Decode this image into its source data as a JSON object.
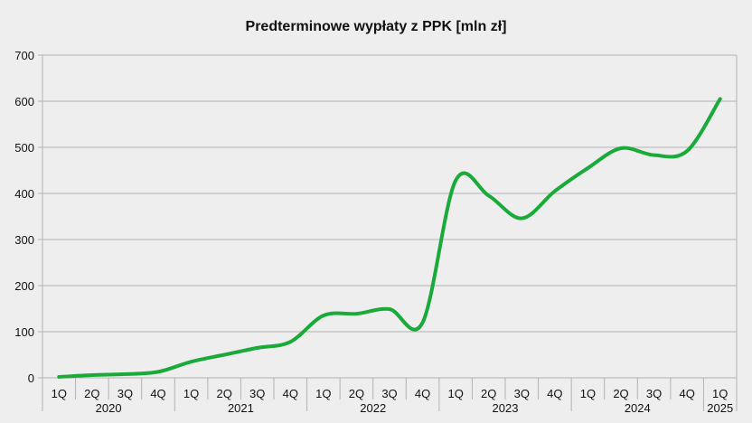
{
  "chart_data": {
    "type": "line",
    "title": "Predterminowe wypłaty z PPK [mln zł]",
    "xlabel": "",
    "ylabel": "",
    "ylim": [
      0,
      700
    ],
    "yticks": [
      "0",
      "100",
      "200",
      "300",
      "400",
      "500",
      "600",
      "700"
    ],
    "grid": true,
    "legend": "none",
    "years": [
      {
        "label": "2020",
        "quarters": [
          "1Q",
          "2Q",
          "3Q",
          "4Q"
        ]
      },
      {
        "label": "2021",
        "quarters": [
          "1Q",
          "2Q",
          "3Q",
          "4Q"
        ]
      },
      {
        "label": "2022",
        "quarters": [
          "1Q",
          "2Q",
          "3Q",
          "4Q"
        ]
      },
      {
        "label": "2023",
        "quarters": [
          "1Q",
          "2Q",
          "3Q",
          "4Q"
        ]
      },
      {
        "label": "2024",
        "quarters": [
          "1Q",
          "2Q",
          "3Q",
          "4Q"
        ]
      },
      {
        "label": "2025",
        "quarters": [
          "1Q"
        ]
      }
    ],
    "series": [
      {
        "name": "Predterminowe wypłaty z PPK",
        "color": "#1aaa3a",
        "values": [
          2,
          6,
          8,
          13,
          35,
          50,
          65,
          78,
          135,
          139,
          149,
          120,
          428,
          395,
          346,
          405,
          455,
          498,
          483,
          492,
          605
        ]
      }
    ]
  }
}
